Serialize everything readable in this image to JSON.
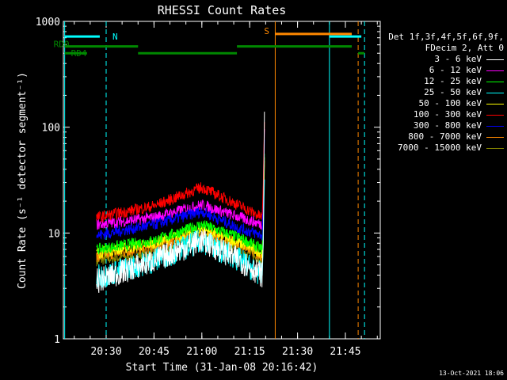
{
  "chart_data": {
    "type": "line",
    "title": "RHESSI Count Rates",
    "xlabel": "Start Time (31-Jan-08 20:16:42)",
    "ylabel": "Count Rate (s⁻¹ detector segment⁻¹)",
    "yscale": "log",
    "ylim": [
      1,
      1000
    ],
    "xlim_minutes": [
      20.28,
      21.93
    ],
    "x_ticks": [
      "20:30",
      "20:45",
      "21:00",
      "21:15",
      "21:30",
      "21:45"
    ],
    "y_ticks": [
      "1",
      "10",
      "100",
      "1000"
    ],
    "legend_header": [
      "Det 1f,3f,4f,5f,6f,9f,",
      "FDecim 2, Att 0"
    ],
    "series": [
      {
        "name": "3 - 6 keV",
        "color": "#ffffff",
        "values": [
          {
            "t": "20:27",
            "y": 3.5
          },
          {
            "t": "20:45",
            "y": 5.5
          },
          {
            "t": "21:00",
            "y": 8.5
          },
          {
            "t": "21:12",
            "y": 5.5
          },
          {
            "t": "21:19",
            "y": 4
          }
        ]
      },
      {
        "name": "6 - 12 keV",
        "color": "#ff00ff",
        "values": [
          {
            "t": "20:27",
            "y": 12
          },
          {
            "t": "20:45",
            "y": 14
          },
          {
            "t": "21:00",
            "y": 18.5
          },
          {
            "t": "21:12",
            "y": 14
          },
          {
            "t": "21:19",
            "y": 12
          }
        ]
      },
      {
        "name": "12 - 25 keV",
        "color": "#00ff00",
        "values": [
          {
            "t": "20:27",
            "y": 7
          },
          {
            "t": "20:45",
            "y": 8.5
          },
          {
            "t": "21:00",
            "y": 12
          },
          {
            "t": "21:12",
            "y": 9
          },
          {
            "t": "21:19",
            "y": 7
          }
        ]
      },
      {
        "name": "25 - 50 keV",
        "color": "#00ffff",
        "values": [
          {
            "t": "20:27",
            "y": 3.8
          },
          {
            "t": "20:45",
            "y": 5.5
          },
          {
            "t": "21:00",
            "y": 8.5
          },
          {
            "t": "21:12",
            "y": 5.5
          },
          {
            "t": "21:19",
            "y": 4
          }
        ]
      },
      {
        "name": "50 - 100 keV",
        "color": "#ffff00",
        "values": [
          {
            "t": "20:27",
            "y": 6.5
          },
          {
            "t": "20:45",
            "y": 8
          },
          {
            "t": "21:00",
            "y": 11
          },
          {
            "t": "21:12",
            "y": 8
          },
          {
            "t": "21:19",
            "y": 6.5
          }
        ]
      },
      {
        "name": "100 - 300 keV",
        "color": "#ff0000",
        "values": [
          {
            "t": "20:27",
            "y": 14
          },
          {
            "t": "20:45",
            "y": 18
          },
          {
            "t": "21:00",
            "y": 27
          },
          {
            "t": "21:12",
            "y": 18
          },
          {
            "t": "21:19",
            "y": 14
          }
        ]
      },
      {
        "name": "300 - 800 keV",
        "color": "#0000ff",
        "values": [
          {
            "t": "20:27",
            "y": 9.5
          },
          {
            "t": "20:45",
            "y": 12
          },
          {
            "t": "21:00",
            "y": 16
          },
          {
            "t": "21:12",
            "y": 11
          },
          {
            "t": "21:19",
            "y": 9.5
          }
        ]
      },
      {
        "name": "800 - 7000 keV",
        "color": "#ff8800",
        "values": [
          {
            "t": "20:27",
            "y": 6
          },
          {
            "t": "20:45",
            "y": 7.5
          },
          {
            "t": "21:00",
            "y": 10
          },
          {
            "t": "21:12",
            "y": 8
          },
          {
            "t": "21:19",
            "y": 6
          }
        ]
      },
      {
        "name": "7000 - 15000 keV",
        "color": "#888800",
        "values": [
          {
            "t": "20:27",
            "y": 5.5
          },
          {
            "t": "20:45",
            "y": 6.5
          },
          {
            "t": "21:00",
            "y": 9
          },
          {
            "t": "21:12",
            "y": 7
          },
          {
            "t": "21:19",
            "y": 5.5
          }
        ]
      }
    ],
    "flags": [
      {
        "label": "N",
        "color": "#00ffff",
        "segments": [
          [
            "20:17",
            "20:28"
          ],
          [
            "21:40",
            "21:50"
          ]
        ],
        "y": 720
      },
      {
        "label": "S",
        "color": "#ff8800",
        "segments": [
          [
            "21:23",
            "21:47"
          ]
        ],
        "y": 760
      },
      {
        "label": "RD0",
        "color": "#008800",
        "segments": [
          [
            "20:17",
            "20:40"
          ],
          [
            "21:11",
            "21:47"
          ]
        ],
        "y": 580
      },
      {
        "label": "RD4",
        "color": "#008800",
        "segments": [
          [
            "20:17",
            "20:24"
          ],
          [
            "20:40",
            "21:11"
          ],
          [
            "21:49",
            "21:51"
          ]
        ],
        "y": 500
      }
    ],
    "vlines": [
      {
        "t": "20:17",
        "color": "#00ffff",
        "style": "solid"
      },
      {
        "t": "20:30",
        "color": "#00ffff",
        "style": "dashed"
      },
      {
        "t": "21:23",
        "color": "#ff8800",
        "style": "solid"
      },
      {
        "t": "21:40",
        "color": "#00ffff",
        "style": "solid"
      },
      {
        "t": "21:49",
        "color": "#ff8800",
        "style": "dashed"
      },
      {
        "t": "21:51",
        "color": "#00ffff",
        "style": "dashed"
      }
    ]
  },
  "stamp": "13-Oct-2021 18:06"
}
